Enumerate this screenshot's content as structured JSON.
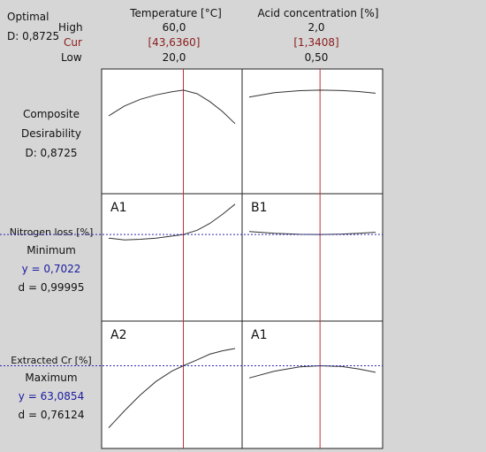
{
  "optimal": {
    "title": "Optimal",
    "d_text": "D: 0,8725"
  },
  "rows_labels": {
    "high": "High",
    "cur": "Cur",
    "low": "Low"
  },
  "factors": [
    {
      "name": "Temperature [°C]",
      "high": "60,0",
      "cur": "[43,6360]",
      "low": "20,0"
    },
    {
      "name": "Acid concentration [%]",
      "high": "2,0",
      "cur": "[1,3408]",
      "low": "0,50"
    }
  ],
  "responses": [
    {
      "lines": [
        "Composite",
        "Desirability",
        "D: 0,8725"
      ]
    },
    {
      "name": "Nitrogen loss [%]",
      "goal": "Minimum",
      "y_text": "y = 0,7022",
      "d_text": "d = 0,99995"
    },
    {
      "name": "Extracted Cr [%]",
      "goal": "Maximum",
      "y_text": "y = 63,0854",
      "d_text": "d = 0,76124"
    }
  ],
  "panel_tags": [
    [
      "",
      ""
    ],
    [
      "A1",
      "B1"
    ],
    [
      "A2",
      "A1"
    ]
  ],
  "colors": {
    "current_line": "#c0303c",
    "target_line": "#2b2bb8",
    "curve": "#333333",
    "frame_bg": "#d6d6d6",
    "panel_bg": "#ffffff"
  },
  "chart_data": {
    "type": "line",
    "x_ranges": [
      [
        20.0,
        60.0
      ],
      [
        0.5,
        2.0
      ]
    ],
    "x_current": [
      43.636,
      1.3408
    ],
    "rows": [
      {
        "response": "Composite Desirability",
        "target": null,
        "ylim": [
          0,
          1
        ],
        "series": [
          {
            "x": [
              20,
              25,
              30,
              35,
              40,
              43.636,
              48,
              52,
              56,
              60
            ],
            "y": [
              0.64,
              0.73,
              0.79,
              0.83,
              0.858,
              0.8725,
              0.84,
              0.77,
              0.68,
              0.57
            ]
          },
          {
            "x": [
              0.5,
              0.8,
              1.1,
              1.3408,
              1.6,
              1.8,
              2.0
            ],
            "y": [
              0.81,
              0.85,
              0.868,
              0.8725,
              0.869,
              0.86,
              0.845
            ]
          }
        ]
      },
      {
        "response": "Nitrogen loss [%]",
        "target": 0.7022,
        "ylim": [
          0,
          1
        ],
        "series": [
          {
            "x": [
              20,
              25,
              30,
              35,
              40,
              43.636,
              48,
              52,
              56,
              60
            ],
            "y": [
              0.67,
              0.655,
              0.66,
              0.67,
              0.688,
              0.7022,
              0.74,
              0.8,
              0.88,
              0.97
            ]
          },
          {
            "x": [
              0.5,
              0.8,
              1.1,
              1.3408,
              1.6,
              1.8,
              2.0
            ],
            "y": [
              0.728,
              0.713,
              0.704,
              0.7022,
              0.706,
              0.713,
              0.722
            ]
          }
        ]
      },
      {
        "response": "Extracted Cr [%]",
        "target": 63.0854,
        "ylim": [
          0,
          1
        ],
        "series": [
          {
            "x": [
              20,
              25,
              30,
              35,
              40,
              43.636,
              48,
              52,
              56,
              60
            ],
            "y": [
              0.12,
              0.27,
              0.41,
              0.53,
              0.62,
              0.6679,
              0.72,
              0.77,
              0.8,
              0.82
            ]
          },
          {
            "x": [
              0.5,
              0.8,
              1.1,
              1.3408,
              1.6,
              1.8,
              2.0
            ],
            "y": [
              0.56,
              0.62,
              0.658,
              0.6679,
              0.661,
              0.64,
              0.61
            ]
          }
        ]
      }
    ]
  }
}
